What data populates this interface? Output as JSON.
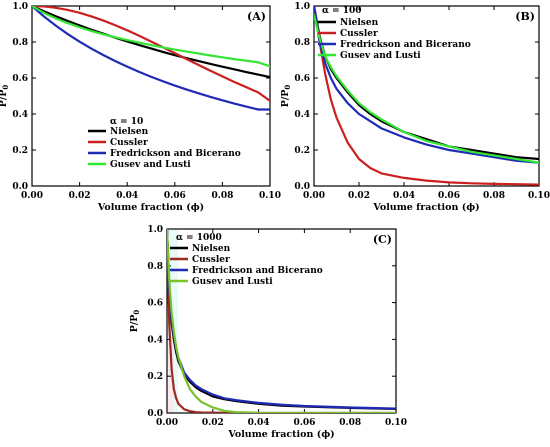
{
  "chart_data": [
    {
      "type": "line",
      "panel_label": "(A)",
      "legend_title": "α = 10",
      "legend_position": "bottom-center",
      "xlabel": "Volume fraction (ϕ)",
      "ylabel": "P/P",
      "ylabel_sub": "0",
      "xlim": [
        0,
        0.1
      ],
      "ylim": [
        0,
        1.0
      ],
      "xticks": [
        "0.00",
        "0.02",
        "0.04",
        "0.06",
        "0.08",
        "0.10"
      ],
      "yticks": [
        "0.0",
        "0.2",
        "0.4",
        "0.6",
        "0.8",
        "1.0"
      ],
      "x": [
        0,
        0.005,
        0.01,
        0.015,
        0.02,
        0.025,
        0.03,
        0.035,
        0.04,
        0.045,
        0.05,
        0.055,
        0.06,
        0.065,
        0.07,
        0.075,
        0.08,
        0.085,
        0.09,
        0.095,
        0.1
      ],
      "series": [
        {
          "name": "Nielsen",
          "color": "#000000",
          "values": [
            1.0,
            0.971,
            0.943,
            0.917,
            0.892,
            0.868,
            0.846,
            0.824,
            0.803,
            0.783,
            0.764,
            0.745,
            0.727,
            0.71,
            0.694,
            0.678,
            0.663,
            0.648,
            0.633,
            0.619,
            0.605
          ]
        },
        {
          "name": "Cussler",
          "color": "#cc2020",
          "values": [
            1.0,
            0.998,
            0.99,
            0.978,
            0.962,
            0.942,
            0.919,
            0.893,
            0.865,
            0.835,
            0.803,
            0.771,
            0.738,
            0.705,
            0.672,
            0.64,
            0.609,
            0.578,
            0.549,
            0.52,
            0.473
          ]
        },
        {
          "name": "Fredrickson and Bicerano",
          "color": "#1f2bb4",
          "values": [
            1.0,
            0.942,
            0.891,
            0.844,
            0.802,
            0.763,
            0.727,
            0.694,
            0.663,
            0.634,
            0.607,
            0.582,
            0.558,
            0.536,
            0.515,
            0.495,
            0.476,
            0.458,
            0.441,
            0.425,
            0.425
          ]
        },
        {
          "name": "Gusev and Lusti",
          "color": "#33e633",
          "values": [
            1.0,
            0.962,
            0.931,
            0.905,
            0.882,
            0.861,
            0.843,
            0.826,
            0.811,
            0.797,
            0.783,
            0.77,
            0.758,
            0.747,
            0.736,
            0.725,
            0.715,
            0.705,
            0.696,
            0.687,
            0.665
          ]
        }
      ]
    },
    {
      "type": "line",
      "panel_label": "(B)",
      "legend_title": "α = 100",
      "legend_position": "top-left",
      "xlabel": "Volume fraction (ϕ)",
      "ylabel": "P/P",
      "ylabel_sub": "0",
      "xlim": [
        0,
        0.1
      ],
      "ylim": [
        0,
        1.0
      ],
      "xticks": [
        "0.00",
        "0.02",
        "0.04",
        "0.06",
        "0.08",
        "0.10"
      ],
      "yticks": [
        "0.0",
        "0.2",
        "0.4",
        "0.6",
        "0.8",
        "1.0"
      ],
      "x": [
        0,
        0.0025,
        0.005,
        0.0075,
        0.01,
        0.015,
        0.02,
        0.025,
        0.03,
        0.04,
        0.05,
        0.06,
        0.07,
        0.08,
        0.09,
        0.1
      ],
      "series": [
        {
          "name": "Nielsen",
          "color": "#000000",
          "values": [
            1.0,
            0.83,
            0.72,
            0.65,
            0.6,
            0.52,
            0.45,
            0.4,
            0.36,
            0.3,
            0.26,
            0.22,
            0.2,
            0.18,
            0.16,
            0.15
          ]
        },
        {
          "name": "Cussler",
          "color": "#cc2020",
          "values": [
            1.0,
            0.8,
            0.62,
            0.48,
            0.38,
            0.24,
            0.15,
            0.1,
            0.07,
            0.045,
            0.03,
            0.02,
            0.015,
            0.012,
            0.01,
            0.008
          ]
        },
        {
          "name": "Fredrickson and Bicerano",
          "color": "#1f2bb4",
          "values": [
            1.0,
            0.8,
            0.68,
            0.6,
            0.54,
            0.46,
            0.4,
            0.36,
            0.32,
            0.27,
            0.23,
            0.2,
            0.18,
            0.16,
            0.14,
            0.13
          ]
        },
        {
          "name": "Gusev and Lusti",
          "color": "#33e633",
          "values": [
            0.95,
            0.82,
            0.72,
            0.66,
            0.61,
            0.53,
            0.46,
            0.41,
            0.37,
            0.3,
            0.25,
            0.22,
            0.19,
            0.17,
            0.15,
            0.13
          ]
        }
      ]
    },
    {
      "type": "line",
      "panel_label": "(C)",
      "legend_title": "α = 1000",
      "legend_position": "top-left",
      "xlabel": "Volume fraction (ϕ)",
      "ylabel": "P/P",
      "ylabel_sub": "0",
      "xlim": [
        0,
        0.1
      ],
      "ylim": [
        0,
        1.0
      ],
      "xticks": [
        "0.00",
        "0.02",
        "0.04",
        "0.06",
        "0.08",
        "0.10"
      ],
      "yticks": [
        "0.0",
        "0.2",
        "0.4",
        "0.6",
        "0.8",
        "1.0"
      ],
      "x": [
        0,
        0.001,
        0.002,
        0.003,
        0.004,
        0.005,
        0.0075,
        0.01,
        0.0125,
        0.015,
        0.02,
        0.025,
        0.03,
        0.04,
        0.05,
        0.06,
        0.08,
        0.1
      ],
      "series": [
        {
          "name": "Nielsen",
          "color": "#000000",
          "values": [
            1.0,
            0.66,
            0.49,
            0.4,
            0.33,
            0.28,
            0.21,
            0.17,
            0.14,
            0.12,
            0.09,
            0.075,
            0.065,
            0.05,
            0.04,
            0.035,
            0.028,
            0.022
          ]
        },
        {
          "name": "Cussler",
          "color": "#9b2a20",
          "values": [
            1.0,
            0.48,
            0.24,
            0.13,
            0.08,
            0.05,
            0.02,
            0.01,
            0.005,
            0.003,
            0.002,
            0.001,
            0.001,
            0.0,
            0.0,
            0.0,
            0.0,
            0.0
          ]
        },
        {
          "name": "Fredrickson and Bicerano",
          "color": "#1f2bb4",
          "values": [
            1.0,
            0.68,
            0.52,
            0.42,
            0.35,
            0.3,
            0.22,
            0.18,
            0.15,
            0.13,
            0.1,
            0.08,
            0.07,
            0.055,
            0.045,
            0.038,
            0.03,
            0.024
          ]
        },
        {
          "name": "Gusev and Lusti",
          "color": "#7ac22a",
          "values": [
            1.0,
            0.72,
            0.55,
            0.44,
            0.36,
            0.3,
            0.2,
            0.13,
            0.09,
            0.06,
            0.03,
            0.012,
            0.005,
            0.001,
            0.0,
            0.0,
            0.0,
            0.0
          ]
        }
      ]
    }
  ]
}
